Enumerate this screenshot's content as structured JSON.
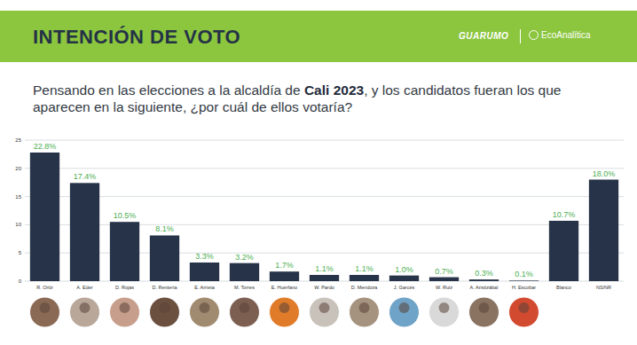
{
  "chart_data": {
    "type": "bar",
    "title": "INTENCIÓN DE VOTO",
    "subtitle": [
      "Pensando en las elecciones a la alcaldía de ",
      "Cali 2023",
      ", y los candidatos fueran los que aparecen en la siguiente, ¿por cuál de ellos votaría?"
    ],
    "annotations": [
      "GUARUMO",
      "EcoAnalítica"
    ],
    "categories": [
      "R. Ortiz",
      "A. Eder",
      "D. Rojas",
      "D. Rentería",
      "E. Arrieta",
      "M. Torres",
      "E. Huérfano",
      "W. Pardo",
      "D. Mendoza",
      "J. Garcés",
      "W. Ruiz",
      "A. Aristizábal",
      "H. Escobar",
      "Blanco",
      "NS/NR"
    ],
    "values": [
      22.8,
      17.4,
      10.5,
      8.1,
      3.3,
      3.2,
      1.7,
      1.1,
      1.1,
      1.0,
      0.7,
      0.3,
      0.1,
      10.7,
      18.0
    ],
    "value_labels": [
      "22.8%",
      "17.4%",
      "10.5%",
      "8.1%",
      "3.3%",
      "3.2%",
      "1.7%",
      "1.1%",
      "1.1%",
      "1.0%",
      "0.7%",
      "0.3%",
      "0.1%",
      "10.7%",
      "18.0%"
    ],
    "color": "#263348",
    "ylim": [
      0,
      25
    ],
    "yticks": [
      0,
      5,
      10,
      15,
      20,
      25
    ],
    "grid": true,
    "data_labels": true
  }
}
